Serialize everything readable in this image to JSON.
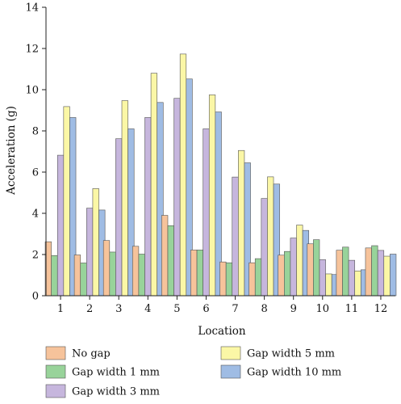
{
  "chart_data": {
    "type": "bar",
    "ylabel": "Acceleration (g)",
    "xlabel": "Location",
    "ylim": [
      0,
      14
    ],
    "yticks": [
      0,
      2,
      4,
      6,
      8,
      10,
      12,
      14
    ],
    "categories": [
      "1",
      "2",
      "3",
      "4",
      "5",
      "6",
      "7",
      "8",
      "9",
      "10",
      "11",
      "12"
    ],
    "grid": false,
    "legend_position": "bottom",
    "series": [
      {
        "name": "No gap",
        "color": "#f6c39b",
        "values": [
          2.62,
          1.98,
          2.68,
          2.4,
          3.9,
          2.22,
          1.64,
          1.6,
          1.97,
          2.52,
          2.21,
          2.32
        ]
      },
      {
        "name": "Gap width 1 mm",
        "color": "#98d39a",
        "values": [
          1.95,
          1.59,
          2.12,
          2.02,
          3.4,
          2.22,
          1.6,
          1.8,
          2.15,
          2.72,
          2.36,
          2.43
        ]
      },
      {
        "name": "Gap width 3 mm",
        "color": "#c6b6dd",
        "values": [
          6.82,
          4.25,
          7.62,
          8.65,
          9.58,
          8.1,
          5.76,
          4.72,
          2.8,
          1.75,
          1.72,
          2.2
        ]
      },
      {
        "name": "Gap width 5 mm",
        "color": "#fbf7a6",
        "values": [
          9.18,
          5.2,
          9.47,
          10.8,
          11.73,
          9.75,
          7.05,
          5.77,
          3.43,
          1.06,
          1.2,
          1.92
        ]
      },
      {
        "name": "Gap width 10 mm",
        "color": "#9fbce4",
        "values": [
          8.65,
          4.16,
          8.1,
          9.38,
          10.52,
          8.92,
          6.45,
          5.42,
          3.17,
          1.03,
          1.26,
          2.02
        ]
      }
    ]
  }
}
